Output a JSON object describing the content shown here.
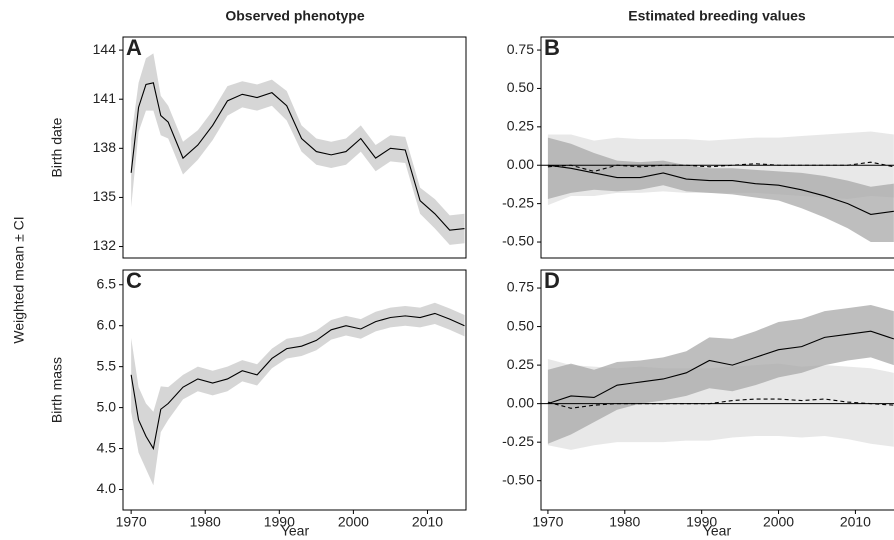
{
  "ylabel": "Weighted mean ± CI",
  "chart_data": [
    {
      "type": "line",
      "panel": "A",
      "title": "Observed phenotype",
      "ylabel": "Birth date",
      "x": [
        1970,
        1971,
        1972,
        1973,
        1974,
        1975,
        1977,
        1979,
        1981,
        1983,
        1985,
        1987,
        1989,
        1991,
        1993,
        1995,
        1997,
        1999,
        2001,
        2003,
        2005,
        2007,
        2009,
        2011,
        2013,
        2015
      ],
      "xlim": [
        1968.9,
        2015.2
      ],
      "ylim": [
        131.3,
        144.8
      ],
      "yticks": [
        132,
        135,
        138,
        141,
        144
      ],
      "series": [
        {
          "color": "#000000",
          "band_color": "#c8c8c8",
          "dash": false,
          "values": [
            136.5,
            140.5,
            141.9,
            142,
            140,
            139.6,
            137.4,
            138.2,
            139.4,
            140.9,
            141.3,
            141.1,
            141.4,
            140.6,
            138.6,
            137.8,
            137.6,
            137.8,
            138.6,
            137.4,
            138,
            137.9,
            134.8,
            134,
            133,
            133.1
          ],
          "lower": [
            134.4,
            139,
            140.3,
            140.3,
            138.8,
            138.6,
            136.4,
            137.3,
            138.5,
            140,
            140.5,
            140.3,
            140.6,
            139.7,
            137.8,
            137,
            136.8,
            137,
            137.8,
            136.6,
            137.2,
            137.1,
            134,
            133.1,
            132.1,
            132.2
          ],
          "upper": [
            138.6,
            142,
            143.5,
            143.8,
            141.2,
            140.6,
            138.4,
            139.1,
            140.3,
            141.8,
            142.1,
            141.9,
            142.2,
            141.5,
            139.4,
            138.6,
            138.4,
            138.6,
            139.4,
            138.2,
            138.8,
            138.7,
            135.6,
            134.9,
            133.9,
            134
          ]
        }
      ]
    },
    {
      "type": "line",
      "panel": "B",
      "title": "Estimated breeding values",
      "x": [
        1970,
        1973,
        1976,
        1979,
        1982,
        1985,
        1988,
        1991,
        1994,
        1997,
        2000,
        2003,
        2006,
        2009,
        2012,
        2015
      ],
      "xlim": [
        1969.1,
        2015.8
      ],
      "ylim": [
        -0.604,
        0.835
      ],
      "hline": 0,
      "yticks": [
        {
          "value": -0.5,
          "label": "-0.50"
        },
        -0.25,
        {
          "value": 0,
          "label": "0.00"
        },
        0.25,
        {
          "value": 0.5,
          "label": "0.50"
        },
        0.75
      ],
      "series": [
        {
          "color": "#000000",
          "band_color": "#e0e0e0",
          "dash": true,
          "values": [
            -0.01,
            0,
            -0.04,
            0,
            -0.01,
            0,
            0,
            -0.01,
            0,
            0.01,
            0,
            0,
            0,
            0,
            0.02,
            -0.01
          ],
          "lower": [
            -0.26,
            -0.2,
            -0.2,
            -0.18,
            -0.18,
            -0.17,
            -0.18,
            -0.18,
            -0.18,
            -0.18,
            -0.19,
            -0.2,
            -0.21,
            -0.22,
            -0.2,
            -0.21
          ],
          "upper": [
            0.2,
            0.2,
            0.16,
            0.18,
            0.17,
            0.17,
            0.17,
            0.16,
            0.17,
            0.18,
            0.18,
            0.19,
            0.2,
            0.21,
            0.22,
            0.2
          ]
        },
        {
          "color": "#000000",
          "band_color": "#a8a8a8",
          "dash": false,
          "values": [
            0,
            -0.02,
            -0.05,
            -0.08,
            -0.08,
            -0.05,
            -0.09,
            -0.1,
            -0.1,
            -0.12,
            -0.13,
            -0.16,
            -0.2,
            -0.25,
            -0.32,
            -0.3
          ],
          "lower": [
            -0.22,
            -0.18,
            -0.16,
            -0.17,
            -0.16,
            -0.13,
            -0.17,
            -0.18,
            -0.19,
            -0.21,
            -0.23,
            -0.28,
            -0.34,
            -0.41,
            -0.5,
            -0.5
          ],
          "upper": [
            0.18,
            0.14,
            0.08,
            0.03,
            0.02,
            0.03,
            0,
            -0.02,
            -0.02,
            -0.03,
            -0.04,
            -0.05,
            -0.07,
            -0.1,
            -0.14,
            -0.12
          ]
        }
      ]
    },
    {
      "type": "line",
      "panel": "C",
      "ylabel": "Birth mass",
      "xlabel": "Year",
      "x": [
        1970,
        1971,
        1972,
        1973,
        1974,
        1975,
        1977,
        1979,
        1981,
        1983,
        1985,
        1987,
        1989,
        1991,
        1993,
        1995,
        1997,
        1999,
        2001,
        2003,
        2005,
        2007,
        2009,
        2011,
        2013,
        2015
      ],
      "xlim": [
        1968.9,
        2015.2
      ],
      "ylim": [
        3.75,
        6.68
      ],
      "xticks": [
        1970,
        1980,
        1990,
        2000,
        2010
      ],
      "yticks": [
        {
          "value": 4,
          "label": "4.0"
        },
        4.5,
        {
          "value": 5,
          "label": "5.0"
        },
        5.5,
        {
          "value": 6,
          "label": "6.0"
        },
        6.5
      ],
      "series": [
        {
          "color": "#000000",
          "band_color": "#c8c8c8",
          "dash": false,
          "values": [
            5.4,
            4.85,
            4.65,
            4.5,
            4.98,
            5.05,
            5.25,
            5.35,
            5.3,
            5.35,
            5.45,
            5.4,
            5.6,
            5.72,
            5.75,
            5.82,
            5.95,
            6,
            5.96,
            6.05,
            6.1,
            6.12,
            6.1,
            6.15,
            6.08,
            6
          ],
          "lower": [
            4.95,
            4.45,
            4.25,
            4.05,
            4.7,
            4.85,
            5.1,
            5.2,
            5.15,
            5.2,
            5.32,
            5.27,
            5.48,
            5.6,
            5.63,
            5.7,
            5.83,
            5.88,
            5.84,
            5.93,
            5.98,
            6,
            5.98,
            6.02,
            5.95,
            5.87
          ],
          "upper": [
            5.85,
            5.25,
            5.05,
            4.95,
            5.26,
            5.25,
            5.4,
            5.5,
            5.45,
            5.5,
            5.58,
            5.53,
            5.72,
            5.84,
            5.87,
            5.94,
            6.07,
            6.12,
            6.08,
            6.17,
            6.22,
            6.24,
            6.22,
            6.28,
            6.21,
            6.13
          ]
        }
      ]
    },
    {
      "type": "line",
      "panel": "D",
      "xlabel": "Year",
      "x": [
        1970,
        1973,
        1976,
        1979,
        1982,
        1985,
        1988,
        1991,
        1994,
        1997,
        2000,
        2003,
        2006,
        2009,
        2012,
        2015
      ],
      "xlim": [
        1969.1,
        2015.8
      ],
      "ylim": [
        -0.69,
        0.867
      ],
      "hline": 0,
      "xticks": [
        1970,
        1980,
        1990,
        2000,
        2010
      ],
      "yticks": [
        {
          "value": -0.5,
          "label": "-0.50"
        },
        -0.25,
        {
          "value": 0,
          "label": "0.00"
        },
        0.25,
        {
          "value": 0.5,
          "label": "0.50"
        },
        0.75
      ],
      "series": [
        {
          "color": "#000000",
          "band_color": "#e0e0e0",
          "dash": true,
          "values": [
            0.01,
            -0.03,
            -0.01,
            0,
            0,
            0,
            0,
            0,
            0.02,
            0.03,
            0.03,
            0.02,
            0.03,
            0.01,
            0,
            -0.01
          ],
          "lower": [
            -0.27,
            -0.3,
            -0.27,
            -0.25,
            -0.25,
            -0.25,
            -0.24,
            -0.24,
            -0.22,
            -0.21,
            -0.21,
            -0.22,
            -0.21,
            -0.23,
            -0.26,
            -0.28
          ],
          "upper": [
            0.29,
            0.25,
            0.24,
            0.23,
            0.24,
            0.23,
            0.23,
            0.23,
            0.24,
            0.25,
            0.26,
            0.24,
            0.25,
            0.24,
            0.23,
            0.2
          ]
        },
        {
          "color": "#000000",
          "band_color": "#a8a8a8",
          "dash": false,
          "values": [
            0,
            0.05,
            0.04,
            0.12,
            0.14,
            0.16,
            0.2,
            0.28,
            0.25,
            0.3,
            0.35,
            0.37,
            0.43,
            0.45,
            0.47,
            0.42
          ],
          "lower": [
            -0.26,
            -0.2,
            -0.12,
            -0.04,
            0,
            0.02,
            0.05,
            0.1,
            0.08,
            0.12,
            0.17,
            0.2,
            0.25,
            0.28,
            0.3,
            0.25
          ],
          "upper": [
            0.22,
            0.26,
            0.22,
            0.27,
            0.28,
            0.3,
            0.34,
            0.43,
            0.42,
            0.47,
            0.53,
            0.55,
            0.6,
            0.62,
            0.64,
            0.6
          ]
        }
      ]
    }
  ]
}
